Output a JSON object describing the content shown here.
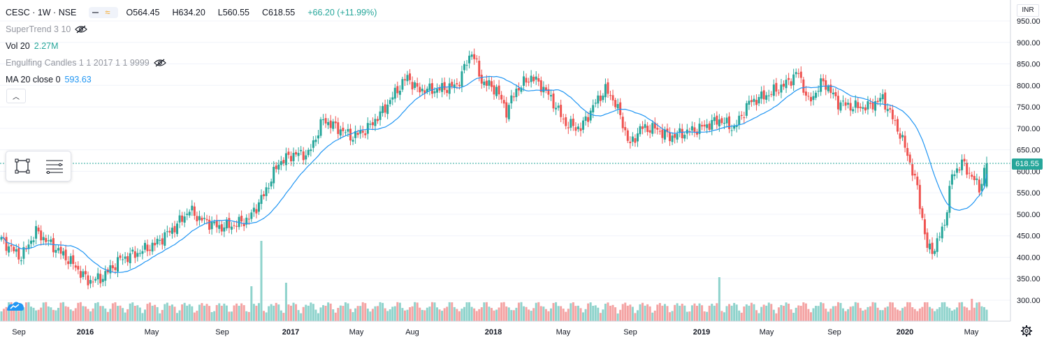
{
  "header": {
    "symbol": "CESC · 1W · NSE",
    "open_label": "O",
    "open": "564.45",
    "high_label": "H",
    "high": "634.20",
    "low_label": "L",
    "low": "560.55",
    "close_label": "C",
    "close": "618.55",
    "change": "+66.20 (+11.99%)"
  },
  "indicators": {
    "supertrend": "SuperTrend 3 10",
    "volume_label": "Vol 20",
    "volume_value": "2.27M",
    "engulfing": "Engulfing Candles 1 1 2017 1 1 9999",
    "ma_label": "MA 20 close 0",
    "ma_value": "593.63"
  },
  "price_axis": {
    "currency": "INR",
    "last_price": "618.55",
    "ticks": [
      "950.00",
      "900.00",
      "850.00",
      "800.00",
      "750.00",
      "700.00",
      "650.00",
      "600.00",
      "550.00",
      "500.00",
      "450.00",
      "400.00",
      "350.00",
      "300.00"
    ]
  },
  "time_axis": {
    "labels": [
      "Sep",
      "2016",
      "May",
      "Sep",
      "2017",
      "May",
      "Aug",
      "2018",
      "May",
      "Sep",
      "2019",
      "May",
      "Sep",
      "2020",
      "May"
    ]
  },
  "colors": {
    "up": "#26a69a",
    "down": "#ef5350",
    "ma": "#2196f3",
    "vol_up": "#8fd3cc",
    "vol_down": "#f4a3a3",
    "grid": "#f0f3fa"
  },
  "icons": {
    "collapse": "chevron-up-icon",
    "toolbox_1": "rectangle-select-icon",
    "toolbox_2": "menu-lines-icon",
    "eye_off": "eye-off-icon",
    "settings": "gear-icon",
    "logo": "tradingview-logo-icon"
  },
  "chart_data": {
    "type": "candlestick",
    "interval": "1W",
    "y_range": [
      280,
      960
    ],
    "anchors_close": [
      [
        0,
        440
      ],
      [
        8,
        400
      ],
      [
        14,
        460
      ],
      [
        20,
        430
      ],
      [
        28,
        390
      ],
      [
        35,
        345
      ],
      [
        40,
        350
      ],
      [
        48,
        395
      ],
      [
        55,
        410
      ],
      [
        62,
        430
      ],
      [
        70,
        470
      ],
      [
        76,
        510
      ],
      [
        80,
        490
      ],
      [
        88,
        470
      ],
      [
        94,
        475
      ],
      [
        100,
        490
      ],
      [
        106,
        545
      ],
      [
        112,
        620
      ],
      [
        118,
        640
      ],
      [
        124,
        640
      ],
      [
        130,
        720
      ],
      [
        136,
        700
      ],
      [
        142,
        680
      ],
      [
        148,
        700
      ],
      [
        154,
        740
      ],
      [
        160,
        790
      ],
      [
        164,
        820
      ],
      [
        168,
        790
      ],
      [
        176,
        790
      ],
      [
        184,
        800
      ],
      [
        190,
        880
      ],
      [
        194,
        810
      ],
      [
        200,
        790
      ],
      [
        204,
        740
      ],
      [
        208,
        790
      ],
      [
        214,
        820
      ],
      [
        218,
        800
      ],
      [
        222,
        770
      ],
      [
        228,
        710
      ],
      [
        234,
        700
      ],
      [
        240,
        760
      ],
      [
        244,
        790
      ],
      [
        248,
        760
      ],
      [
        254,
        660
      ],
      [
        258,
        700
      ],
      [
        264,
        700
      ],
      [
        270,
        680
      ],
      [
        276,
        690
      ],
      [
        282,
        700
      ],
      [
        290,
        720
      ],
      [
        296,
        700
      ],
      [
        302,
        760
      ],
      [
        310,
        780
      ],
      [
        316,
        800
      ],
      [
        322,
        830
      ],
      [
        326,
        760
      ],
      [
        332,
        810
      ],
      [
        338,
        760
      ],
      [
        344,
        750
      ],
      [
        350,
        750
      ],
      [
        356,
        770
      ],
      [
        362,
        700
      ],
      [
        366,
        640
      ],
      [
        370,
        560
      ],
      [
        374,
        420
      ],
      [
        377,
        420
      ],
      [
        381,
        480
      ],
      [
        384,
        590
      ],
      [
        388,
        620
      ],
      [
        393,
        580
      ],
      [
        395,
        560
      ],
      [
        398,
        618.55
      ]
    ],
    "ma20_last": 593.63,
    "last": {
      "open": 564.45,
      "high": 634.2,
      "low": 560.55,
      "close": 618.55
    }
  }
}
